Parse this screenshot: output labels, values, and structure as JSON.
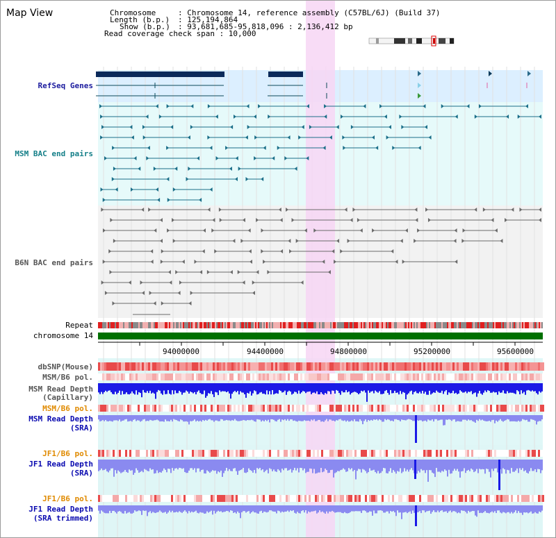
{
  "app_title": "Map View",
  "info": {
    "chromosome_key": "Chromosome",
    "chromosome_val": ": Chromosome 14, reference assembly (C57BL/6J) (Build 37)",
    "length_key": "Length (b.p.)",
    "length_val": ": 125,194,864",
    "show_key": "Show (b.p.)",
    "show_val": ": 93,681,685-95,818,096 : 2,136,412 bp",
    "coverage": "Read coverage check span : 10,000"
  },
  "tracks": {
    "refseq": "RefSeq Genes",
    "msm_bac": "MSM BAC end pairs",
    "b6n_bac": "B6N BAC end pairs",
    "repeat": "Repeat",
    "chromosome": "chromosome 14",
    "dbsnp": "dbSNP(Mouse)",
    "msm_b6_pol_1": "MSM/B6 pol.",
    "msm_read_depth_cap_1": "MSM Read Depth",
    "msm_read_depth_cap_2": "(Capillary)",
    "msm_b6_pol_2": "MSM/B6 pol.",
    "msm_read_depth_sra_1": "MSM Read Depth",
    "msm_read_depth_sra_2": "(SRA)",
    "jf1_b6_pol_1": "JF1/B6 pol.",
    "jf1_read_depth_sra_1": "JF1 Read Depth",
    "jf1_read_depth_sra_2": "(SRA)",
    "jf1_b6_pol_2": "JF1/B6 pol.",
    "jf1_read_depth_trim_1": "JF1 Read Depth",
    "jf1_read_depth_trim_2": "(SRA trimmed)"
  },
  "axis_ticks": [
    "94000000",
    "94400000",
    "94800000",
    "95200000",
    "95600000"
  ],
  "colors": {
    "refseq_bg": "#dcefff",
    "msm_bg": "#e6fafa",
    "b6n_bg": "#f2f2f2",
    "highlight": "#f7d6f5",
    "chromosome": "#007000",
    "depth_blue": "#1a1ae6",
    "depth_light": "#8a8af0"
  }
}
